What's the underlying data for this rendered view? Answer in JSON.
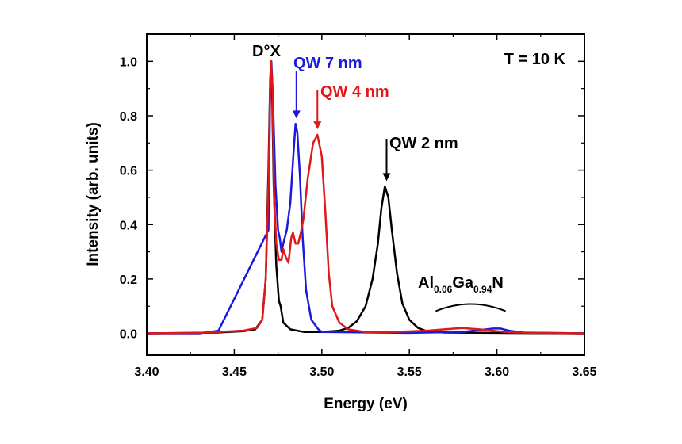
{
  "chart_data": {
    "type": "line",
    "xlabel": "Energy (eV)",
    "ylabel": "Intensity (arb. units)",
    "xlim": [
      3.4,
      3.65
    ],
    "ylim": [
      -0.08,
      1.1
    ],
    "x_ticks": [
      "3.40",
      "3.45",
      "3.50",
      "3.55",
      "3.60",
      "3.65"
    ],
    "y_ticks": [
      "0.0",
      "0.2",
      "0.4",
      "0.6",
      "0.8",
      "1.0"
    ],
    "temperature_label": "T = 10 K",
    "series": [
      {
        "name": "QW 2 nm",
        "color": "#000000",
        "points": [
          [
            3.4,
            0.0
          ],
          [
            3.44,
            0.003
          ],
          [
            3.455,
            0.008
          ],
          [
            3.462,
            0.015
          ],
          [
            3.466,
            0.05
          ],
          [
            3.468,
            0.2
          ],
          [
            3.4695,
            0.6
          ],
          [
            3.4705,
            0.93
          ],
          [
            3.471,
            1.0
          ],
          [
            3.4715,
            0.93
          ],
          [
            3.4725,
            0.55
          ],
          [
            3.474,
            0.25
          ],
          [
            3.4755,
            0.12
          ],
          [
            3.4765,
            0.1
          ],
          [
            3.478,
            0.04
          ],
          [
            3.482,
            0.015
          ],
          [
            3.49,
            0.005
          ],
          [
            3.5,
            0.005
          ],
          [
            3.51,
            0.01
          ],
          [
            3.515,
            0.02
          ],
          [
            3.52,
            0.045
          ],
          [
            3.525,
            0.1
          ],
          [
            3.529,
            0.2
          ],
          [
            3.532,
            0.33
          ],
          [
            3.534,
            0.46
          ],
          [
            3.536,
            0.54
          ],
          [
            3.538,
            0.5
          ],
          [
            3.54,
            0.38
          ],
          [
            3.543,
            0.22
          ],
          [
            3.546,
            0.11
          ],
          [
            3.55,
            0.05
          ],
          [
            3.555,
            0.02
          ],
          [
            3.56,
            0.008
          ],
          [
            3.57,
            0.003
          ],
          [
            3.6,
            0.002
          ],
          [
            3.65,
            0.0
          ]
        ]
      },
      {
        "name": "QW 7 nm",
        "color": "#1a1adc",
        "points": [
          [
            3.4,
            0.0
          ],
          [
            3.43,
            0.0
          ],
          [
            3.441,
            0.01
          ],
          [
            3.4695,
            0.38
          ],
          [
            3.4705,
            0.9
          ],
          [
            3.4712,
            1.0
          ],
          [
            3.472,
            0.88
          ],
          [
            3.4735,
            0.55
          ],
          [
            3.475,
            0.38
          ],
          [
            3.476,
            0.35
          ],
          [
            3.477,
            0.3
          ],
          [
            3.478,
            0.33
          ],
          [
            3.48,
            0.38
          ],
          [
            3.482,
            0.48
          ],
          [
            3.484,
            0.68
          ],
          [
            3.485,
            0.77
          ],
          [
            3.486,
            0.74
          ],
          [
            3.4875,
            0.58
          ],
          [
            3.489,
            0.36
          ],
          [
            3.491,
            0.16
          ],
          [
            3.494,
            0.05
          ],
          [
            3.498,
            0.015
          ],
          [
            3.5,
            0.005
          ],
          [
            3.55,
            0.002
          ],
          [
            3.58,
            0.005
          ],
          [
            3.59,
            0.012
          ],
          [
            3.598,
            0.018
          ],
          [
            3.602,
            0.018
          ],
          [
            3.607,
            0.01
          ],
          [
            3.615,
            0.003
          ],
          [
            3.65,
            0.0
          ]
        ]
      },
      {
        "name": "QW 4 nm",
        "color": "#e01818",
        "points": [
          [
            3.4,
            0.0
          ],
          [
            3.43,
            0.002
          ],
          [
            3.455,
            0.01
          ],
          [
            3.463,
            0.02
          ],
          [
            3.466,
            0.05
          ],
          [
            3.468,
            0.2
          ],
          [
            3.4695,
            0.55
          ],
          [
            3.4705,
            0.9
          ],
          [
            3.471,
            1.0
          ],
          [
            3.4718,
            0.9
          ],
          [
            3.4728,
            0.5
          ],
          [
            3.474,
            0.33
          ],
          [
            3.4755,
            0.27
          ],
          [
            3.477,
            0.27
          ],
          [
            3.478,
            0.31
          ],
          [
            3.4795,
            0.28
          ],
          [
            3.481,
            0.26
          ],
          [
            3.4825,
            0.35
          ],
          [
            3.4835,
            0.37
          ],
          [
            3.485,
            0.33
          ],
          [
            3.4865,
            0.33
          ],
          [
            3.488,
            0.37
          ],
          [
            3.4895,
            0.42
          ],
          [
            3.492,
            0.57
          ],
          [
            3.495,
            0.7
          ],
          [
            3.4975,
            0.73
          ],
          [
            3.5,
            0.65
          ],
          [
            3.502,
            0.45
          ],
          [
            3.504,
            0.22
          ],
          [
            3.506,
            0.1
          ],
          [
            3.51,
            0.04
          ],
          [
            3.515,
            0.015
          ],
          [
            3.525,
            0.005
          ],
          [
            3.54,
            0.005
          ],
          [
            3.56,
            0.01
          ],
          [
            3.57,
            0.015
          ],
          [
            3.58,
            0.02
          ],
          [
            3.59,
            0.015
          ],
          [
            3.6,
            0.008
          ],
          [
            3.61,
            0.003
          ],
          [
            3.65,
            0.0
          ]
        ]
      }
    ],
    "annotations": [
      {
        "text": "D°X",
        "color": "#000000"
      },
      {
        "text": "QW 7 nm",
        "color": "#1a1adc",
        "arrow_x": 3.4855,
        "arrow_y": 0.79
      },
      {
        "text": "QW 4 nm",
        "color": "#e01818",
        "arrow_x": 3.4975,
        "arrow_y": 0.75
      },
      {
        "text": "QW 2 nm",
        "color": "#000000",
        "arrow_x": 3.537,
        "arrow_y": 0.56
      }
    ],
    "alloy_label": {
      "base1": "Al",
      "sub1": "0.06",
      "base2": "Ga",
      "sub2": "0.94",
      "base3": "N"
    },
    "alloy_bracket": {
      "x_start": 3.565,
      "x_end": 3.605,
      "y_mid": 0.105
    }
  }
}
